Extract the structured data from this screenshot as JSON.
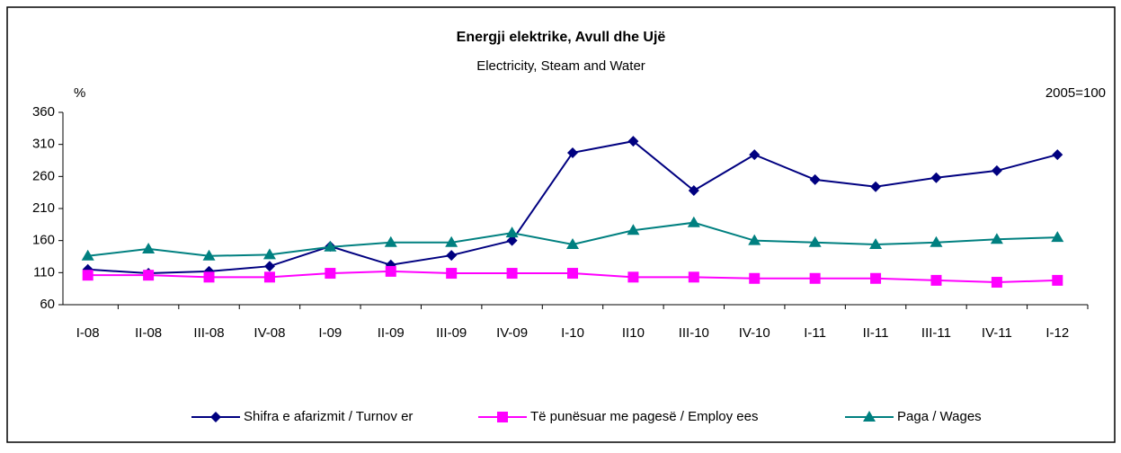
{
  "chart_data": {
    "type": "line",
    "title": "Energji elektrike, Avull dhe Ujë",
    "subtitle": "Electricity, Steam and Water",
    "y_label": "%",
    "annotation": "2005=100",
    "categories": [
      "I-08",
      "II-08",
      "III-08",
      "IV-08",
      "I-09",
      "II-09",
      "III-09",
      "IV-09",
      "I-10",
      "II10",
      "III-10",
      "IV-10",
      "I-11",
      "II-11",
      "III-11",
      "IV-11",
      "I-12"
    ],
    "series": [
      {
        "name": "Shifra e afarizmit / Turnov er",
        "color": "#000080",
        "marker": "diamond",
        "values": [
          115,
          109,
          112,
          120,
          151,
          122,
          137,
          160,
          297,
          315,
          238,
          294,
          255,
          244,
          258,
          269,
          294
        ]
      },
      {
        "name": "Të punësuar me pagesë / Employ ees",
        "color": "#ff00ff",
        "marker": "square",
        "values": [
          106,
          106,
          103,
          103,
          109,
          112,
          109,
          109,
          109,
          103,
          103,
          101,
          101,
          101,
          98,
          95,
          98
        ]
      },
      {
        "name": "Paga / Wages",
        "color": "#008080",
        "marker": "triangle",
        "values": [
          136,
          147,
          136,
          138,
          150,
          157,
          157,
          172,
          154,
          176,
          188,
          160,
          157,
          154,
          157,
          162,
          165
        ]
      }
    ],
    "ylim": [
      60,
      360
    ],
    "yticks": [
      60,
      110,
      160,
      210,
      260,
      310,
      360
    ],
    "grid": false
  }
}
